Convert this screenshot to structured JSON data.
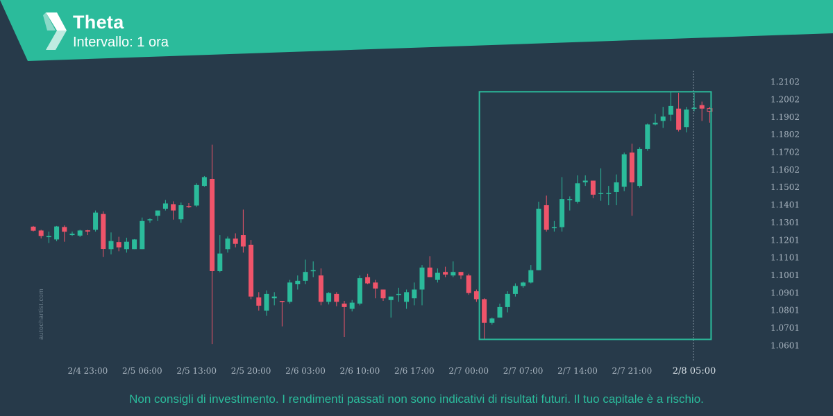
{
  "header": {
    "title": "Theta",
    "subtitle": "Intervallo: 1 ora",
    "logo_icon": "autochartist-logo-icon"
  },
  "watermark": "autochartist.com",
  "disclaimer": "Non consigli di investimento. I rendimenti passati non sono indicativi di risultati futuri. Il tuo capitale è a rischio.",
  "colors": {
    "background": "#273a4a",
    "header": "#2bbb9b",
    "bullish": "#2bbb9b",
    "bearish": "#f0546a",
    "pattern_box": "#2bbb9b",
    "axis_text": "#a8b4bf",
    "disclaimer": "#2bbb9b"
  },
  "chart_data": {
    "type": "candlestick",
    "ylim": [
      1.0561,
      1.2152
    ],
    "y_ticks": [
      "1.2102",
      "1.2002",
      "1.1902",
      "1.1802",
      "1.1702",
      "1.1602",
      "1.1502",
      "1.1401",
      "1.1301",
      "1.1201",
      "1.1101",
      "1.1001",
      "1.0901",
      "1.0801",
      "1.0701",
      "1.0601"
    ],
    "x_ticks": [
      {
        "label": "2/4 23:00",
        "index": 7
      },
      {
        "label": "2/5 06:00",
        "index": 14
      },
      {
        "label": "2/5 13:00",
        "index": 21
      },
      {
        "label": "2/5 20:00",
        "index": 28
      },
      {
        "label": "2/6 03:00",
        "index": 35
      },
      {
        "label": "2/6 10:00",
        "index": 42
      },
      {
        "label": "2/6 17:00",
        "index": 49
      },
      {
        "label": "2/7 00:00",
        "index": 56
      },
      {
        "label": "2/7 07:00",
        "index": 63
      },
      {
        "label": "2/7 14:00",
        "index": 70
      },
      {
        "label": "2/7 21:00",
        "index": 77
      },
      {
        "label": "2/8 05:00",
        "index": 85,
        "highlight": true
      }
    ],
    "candles": [
      [
        1.1278,
        1.1282,
        1.1251,
        1.1255
      ],
      [
        1.1256,
        1.126,
        1.1211,
        1.1225
      ],
      [
        1.1218,
        1.125,
        1.1185,
        1.1225
      ],
      [
        1.1205,
        1.1282,
        1.1195,
        1.1279
      ],
      [
        1.1276,
        1.1285,
        1.1192,
        1.1249
      ],
      [
        1.123,
        1.125,
        1.1225,
        1.1238
      ],
      [
        1.1227,
        1.126,
        1.1219,
        1.1256
      ],
      [
        1.1257,
        1.126,
        1.123,
        1.125
      ],
      [
        1.126,
        1.137,
        1.125,
        1.1358
      ],
      [
        1.135,
        1.1365,
        1.1105,
        1.1151
      ],
      [
        1.115,
        1.1245,
        1.112,
        1.1196
      ],
      [
        1.119,
        1.122,
        1.1138,
        1.116
      ],
      [
        1.115,
        1.1215,
        1.113,
        1.1192
      ],
      [
        1.115,
        1.1207,
        1.115,
        1.1205
      ],
      [
        1.115,
        1.133,
        1.115,
        1.131
      ],
      [
        1.1315,
        1.1325,
        1.13,
        1.132
      ],
      [
        1.134,
        1.137,
        1.131,
        1.137
      ],
      [
        1.138,
        1.143,
        1.137,
        1.141
      ],
      [
        1.1406,
        1.1422,
        1.1318,
        1.137
      ],
      [
        1.132,
        1.1415,
        1.13,
        1.14
      ],
      [
        1.1395,
        1.1412,
        1.1385,
        1.139
      ],
      [
        1.1398,
        1.1525,
        1.139,
        1.1515
      ],
      [
        1.151,
        1.1566,
        1.1505,
        1.156
      ],
      [
        1.155,
        1.1745,
        1.061,
        1.1025
      ],
      [
        1.1025,
        1.123,
        1.1018,
        1.1125
      ],
      [
        1.115,
        1.1222,
        1.113,
        1.121
      ],
      [
        1.121,
        1.124,
        1.116,
        1.118
      ],
      [
        1.123,
        1.1375,
        1.113,
        1.1165
      ],
      [
        1.1175,
        1.1202,
        1.0865,
        1.088
      ],
      [
        1.0875,
        1.0905,
        1.08,
        1.0828
      ],
      [
        1.08,
        1.0915,
        1.077,
        1.0895
      ],
      [
        1.087,
        1.0905,
        1.083,
        1.088
      ],
      [
        1.0855,
        1.0855,
        1.071,
        1.085
      ],
      [
        1.085,
        1.0975,
        1.084,
        1.096
      ],
      [
        1.095,
        1.1,
        1.092,
        1.097
      ],
      [
        1.097,
        1.109,
        1.095,
        1.102
      ],
      [
        1.1025,
        1.108,
        1.099,
        1.103
      ],
      [
        1.1,
        1.104,
        1.083,
        1.085
      ],
      [
        1.085,
        1.0905,
        1.0835,
        1.09
      ],
      [
        1.0895,
        1.0905,
        1.0825,
        1.085
      ],
      [
        1.084,
        1.0855,
        1.065,
        1.082
      ],
      [
        1.081,
        1.086,
        1.0795,
        1.0845
      ],
      [
        1.084,
        1.1,
        1.083,
        1.0985
      ],
      [
        1.099,
        1.101,
        1.095,
        1.0955
      ],
      [
        1.096,
        1.0975,
        1.087,
        1.0925
      ],
      [
        1.092,
        1.092,
        1.0855,
        1.087
      ],
      [
        1.086,
        1.088,
        1.076,
        1.088
      ],
      [
        1.089,
        1.093,
        1.085,
        1.0895
      ],
      [
        1.085,
        1.092,
        1.081,
        1.0905
      ],
      [
        1.087,
        1.096,
        1.083,
        1.092
      ],
      [
        1.092,
        1.106,
        1.083,
        1.1045
      ],
      [
        1.1045,
        1.111,
        1.099,
        1.099
      ],
      [
        1.0975,
        1.104,
        1.096,
        1.1015
      ],
      [
        1.102,
        1.105,
        1.099,
        1.1005
      ],
      [
        1.1,
        1.108,
        1.099,
        1.102
      ],
      [
        1.102,
        1.102,
        1.098,
        1.1
      ],
      [
        1.1,
        1.101,
        1.089,
        1.09
      ],
      [
        1.091,
        1.092,
        1.085,
        1.0865
      ],
      [
        1.0865,
        1.087,
        1.064,
        1.073
      ],
      [
        1.073,
        1.076,
        1.072,
        1.0755
      ],
      [
        1.076,
        1.084,
        1.076,
        1.082
      ],
      [
        1.082,
        1.091,
        1.079,
        1.0895
      ],
      [
        1.0895,
        1.0955,
        1.088,
        1.094
      ],
      [
        1.094,
        1.0965,
        1.093,
        1.096
      ],
      [
        1.096,
        1.106,
        1.0955,
        1.103
      ],
      [
        1.103,
        1.142,
        1.103,
        1.138
      ],
      [
        1.14,
        1.1455,
        1.125,
        1.126
      ],
      [
        1.127,
        1.131,
        1.125,
        1.1275
      ],
      [
        1.1275,
        1.156,
        1.125,
        1.1435
      ],
      [
        1.1435,
        1.145,
        1.137,
        1.1435
      ],
      [
        1.142,
        1.157,
        1.141,
        1.1525
      ],
      [
        1.153,
        1.157,
        1.151,
        1.154
      ],
      [
        1.154,
        1.154,
        1.144,
        1.146
      ],
      [
        1.1465,
        1.161,
        1.1425,
        1.147
      ],
      [
        1.1465,
        1.151,
        1.14,
        1.147
      ],
      [
        1.1475,
        1.1575,
        1.14,
        1.153
      ],
      [
        1.1505,
        1.17,
        1.148,
        1.169
      ],
      [
        1.17,
        1.175,
        1.134,
        1.153
      ],
      [
        1.151,
        1.173,
        1.15,
        1.172
      ],
      [
        1.172,
        1.1865,
        1.171,
        1.186
      ],
      [
        1.186,
        1.192,
        1.1855,
        1.187
      ],
      [
        1.188,
        1.196,
        1.184,
        1.1905
      ],
      [
        1.1915,
        1.2045,
        1.188,
        1.1965
      ],
      [
        1.195,
        1.204,
        1.182,
        1.183
      ],
      [
        1.1845,
        1.196,
        1.1815,
        1.1945
      ],
      [
        1.195,
        1.204,
        1.1935,
        1.1955
      ],
      [
        1.197,
        1.199,
        1.188,
        1.195
      ],
      [
        1.195,
        1.196,
        1.187,
        1.1935
      ]
    ],
    "last_candle_outlined": true,
    "pattern_box": {
      "start_index": 58,
      "end_index": 87,
      "top": 1.2046,
      "bottom": 1.0636
    }
  }
}
